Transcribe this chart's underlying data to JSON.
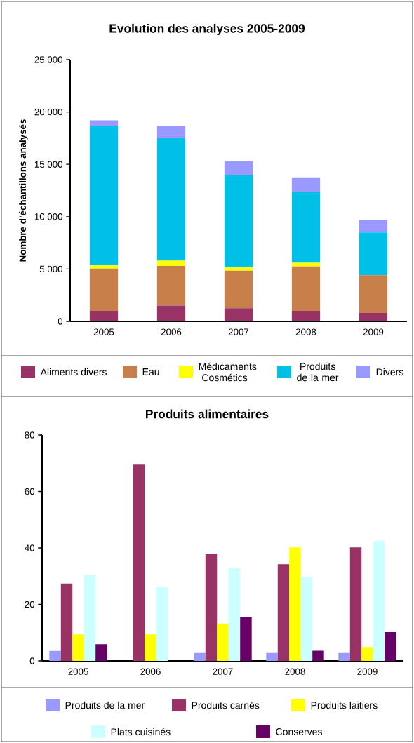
{
  "chart_data": [
    {
      "type": "bar",
      "title": "Evolution des analyses 2005-2009",
      "ylabel": "Nombre d’échantillons analysés",
      "stacked": true,
      "legend": "bottom",
      "categories": [
        "2005",
        "2006",
        "2007",
        "2008",
        "2009"
      ],
      "ylim": [
        0,
        25000
      ],
      "yticks": [
        0,
        {
          "value": 5000,
          "label": "5 000"
        },
        {
          "value": 10000,
          "label": "10 000"
        },
        {
          "value": 15000,
          "label": "15 000"
        },
        {
          "value": 20000,
          "label": "20 000"
        },
        {
          "value": 25000,
          "label": "25 000"
        }
      ],
      "series": [
        {
          "name": "Aliments divers",
          "color": "#993366",
          "values": [
            1000,
            1500,
            1250,
            1000,
            800
          ]
        },
        {
          "name": "Eau",
          "color": "#c8804a",
          "values": [
            4050,
            3800,
            3600,
            4250,
            3600
          ]
        },
        {
          "name": "Médicaments Cosmétics",
          "color": "#ffff00",
          "values": [
            300,
            500,
            300,
            350,
            0
          ]
        },
        {
          "name": "Produits de la mer",
          "color": "#00c0e8",
          "values": [
            13350,
            11750,
            8800,
            6750,
            4100
          ]
        },
        {
          "name": "Divers",
          "color": "#9999ff",
          "values": [
            500,
            1150,
            1400,
            1400,
            1200
          ]
        }
      ]
    },
    {
      "type": "bar",
      "title": "Produits alimentaires",
      "legend": "bottom",
      "categories": [
        "2005",
        "2006",
        "2007",
        "2008",
        "2009"
      ],
      "ylim": [
        0,
        80
      ],
      "yticks": [
        0,
        20,
        40,
        60,
        80
      ],
      "series": [
        {
          "name": "Produits de la mer",
          "color": "#9999ff",
          "values": [
            3.6,
            0,
            2.8,
            2.8,
            2.8
          ]
        },
        {
          "name": "Produits carnés",
          "color": "#993366",
          "values": [
            27.4,
            69.5,
            38,
            34.2,
            40.2
          ]
        },
        {
          "name": "Produits laitiers",
          "color": "#ffff00",
          "values": [
            9.4,
            9.4,
            13.2,
            40.2,
            4.9
          ]
        },
        {
          "name": "Plats cuisinés",
          "color": "#ccffff",
          "values": [
            30.5,
            26.3,
            32.8,
            29.7,
            42.5
          ]
        },
        {
          "name": "Conserves",
          "color": "#660066",
          "values": [
            5.9,
            0,
            15.4,
            3.6,
            10.2
          ]
        }
      ]
    }
  ]
}
